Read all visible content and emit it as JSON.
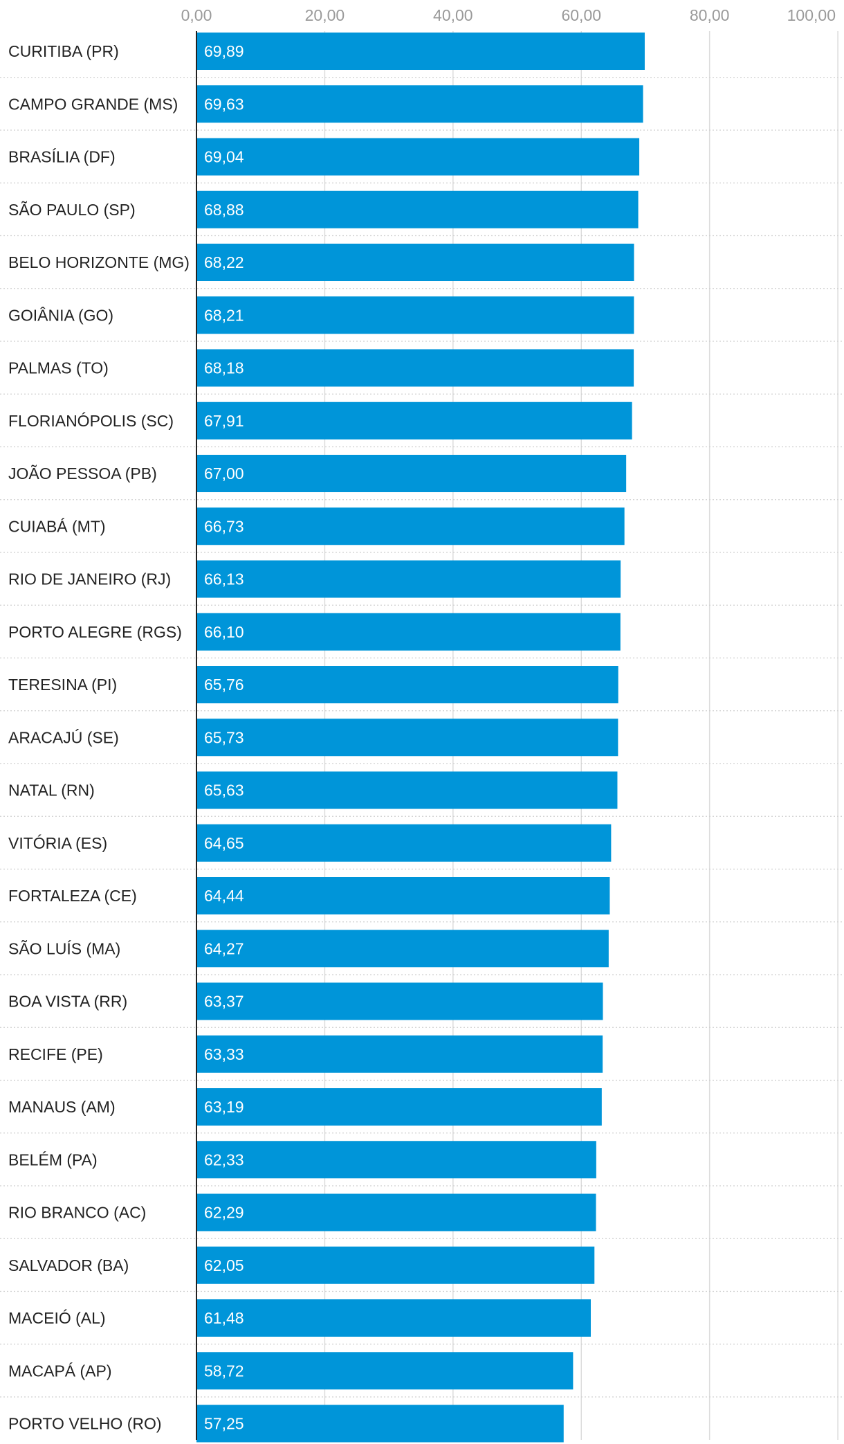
{
  "chart_data": {
    "type": "bar",
    "orientation": "horizontal",
    "title": "",
    "xlabel": "",
    "ylabel": "",
    "xlim": [
      0,
      100
    ],
    "ticks": [
      0,
      20,
      40,
      60,
      80,
      100
    ],
    "tick_labels": [
      "0,00",
      "20,00",
      "40,00",
      "60,00",
      "80,00",
      "100,00"
    ],
    "grid": true,
    "bar_color": "#0095d9",
    "categories": [
      "CURITIBA (PR)",
      "CAMPO GRANDE (MS)",
      "BRASÍLIA (DF)",
      "SÃO PAULO (SP)",
      "BELO HORIZONTE (MG)",
      "GOIÂNIA (GO)",
      "PALMAS (TO)",
      "FLORIANÓPOLIS (SC)",
      "JOÃO PESSOA (PB)",
      "CUIABÁ (MT)",
      "RIO DE JANEIRO (RJ)",
      "PORTO ALEGRE (RGS)",
      "TERESINA (PI)",
      "ARACAJÚ (SE)",
      "NATAL (RN)",
      "VITÓRIA (ES)",
      "FORTALEZA (CE)",
      "SÃO LUÍS (MA)",
      "BOA VISTA (RR)",
      "RECIFE (PE)",
      "MANAUS (AM)",
      "BELÉM (PA)",
      "RIO BRANCO (AC)",
      "SALVADOR (BA)",
      "MACEIÓ (AL)",
      "MACAPÁ (AP)",
      "PORTO VELHO (RO)"
    ],
    "values": [
      69.89,
      69.63,
      69.04,
      68.88,
      68.22,
      68.21,
      68.18,
      67.91,
      67.0,
      66.73,
      66.13,
      66.1,
      65.76,
      65.73,
      65.63,
      64.65,
      64.44,
      64.27,
      63.37,
      63.33,
      63.19,
      62.33,
      62.29,
      62.05,
      61.48,
      58.72,
      57.25
    ],
    "value_labels": [
      "69,89",
      "69,63",
      "69,04",
      "68,88",
      "68,22",
      "68,21",
      "68,18",
      "67,91",
      "67,00",
      "66,73",
      "66,13",
      "66,10",
      "65,76",
      "65,73",
      "65,63",
      "64,65",
      "64,44",
      "64,27",
      "63,37",
      "63,33",
      "63,19",
      "62,33",
      "62,29",
      "62,05",
      "61,48",
      "58,72",
      "57,25"
    ]
  }
}
